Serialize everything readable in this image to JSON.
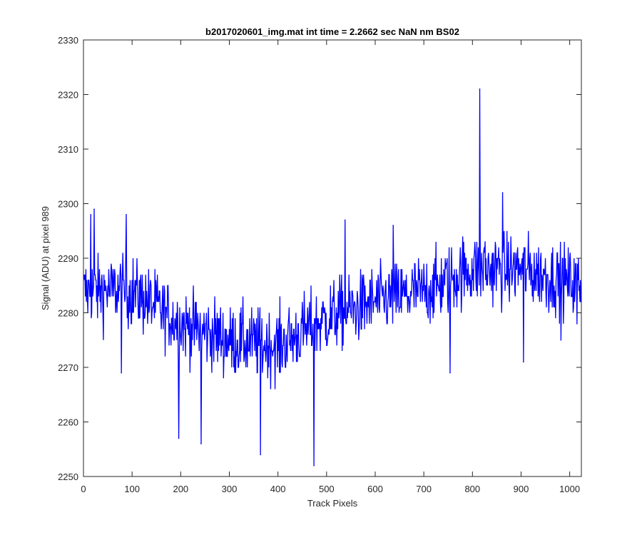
{
  "chart_data": {
    "type": "line",
    "title": "b2017020601_img.mat int time = 2.2662 sec  NaN nm BS02",
    "xlabel": "Track Pixels",
    "ylabel": "Signal (ADU) at pixel 989",
    "xlim": [
      0,
      1024
    ],
    "ylim": [
      2250,
      2330
    ],
    "xticks": [
      0,
      100,
      200,
      300,
      400,
      500,
      600,
      700,
      800,
      900,
      1000
    ],
    "yticks": [
      2250,
      2260,
      2270,
      2280,
      2290,
      2300,
      2310,
      2320,
      2330
    ],
    "grid": false,
    "series": [
      {
        "name": "signal",
        "color": "#0000ff",
        "x_start": 1,
        "x_step": 1,
        "count": 1024,
        "noise_amplitude": 6,
        "trend": [
          [
            0,
            2284
          ],
          [
            100,
            2284
          ],
          [
            200,
            2278
          ],
          [
            300,
            2275
          ],
          [
            400,
            2274
          ],
          [
            500,
            2279
          ],
          [
            600,
            2282
          ],
          [
            700,
            2284
          ],
          [
            800,
            2288
          ],
          [
            900,
            2288
          ],
          [
            1024,
            2285
          ]
        ],
        "notable_points": [
          [
            15,
            2298
          ],
          [
            22,
            2299
          ],
          [
            78,
            2269
          ],
          [
            88,
            2298
          ],
          [
            196,
            2257
          ],
          [
            242,
            2256
          ],
          [
            364,
            2254
          ],
          [
            474,
            2252
          ],
          [
            538,
            2297
          ],
          [
            637,
            2296
          ],
          [
            754,
            2269
          ],
          [
            815,
            2321
          ],
          [
            826,
            2293
          ],
          [
            862,
            2302
          ],
          [
            905,
            2271
          ],
          [
            982,
            2275
          ],
          [
            1015,
            2278
          ]
        ]
      }
    ]
  }
}
